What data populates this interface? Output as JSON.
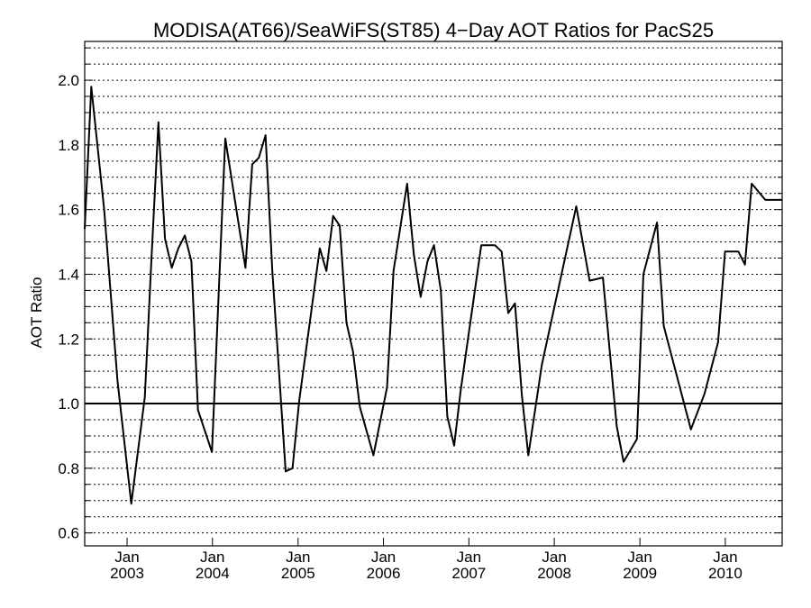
{
  "chart_data": {
    "type": "line",
    "title": "MODISA(AT66)/SeaWiFS(ST85) 4−Day AOT Ratios for PacS25",
    "xlabel": "",
    "ylabel": "AOT Ratio",
    "ylim": [
      0.56,
      2.12
    ],
    "xlim": [
      "2002-07-04",
      "2010-09-01"
    ],
    "y_ticks": [
      "0.6",
      "0.8",
      "1.0",
      "1.2",
      "1.4",
      "1.6",
      "1.8",
      "2.0"
    ],
    "x_ticks": [
      {
        "month": "Jan",
        "year": "2003"
      },
      {
        "month": "Jan",
        "year": "2004"
      },
      {
        "month": "Jan",
        "year": "2005"
      },
      {
        "month": "Jan",
        "year": "2006"
      },
      {
        "month": "Jan",
        "year": "2007"
      },
      {
        "month": "Jan",
        "year": "2008"
      },
      {
        "month": "Jan",
        "year": "2009"
      },
      {
        "month": "Jan",
        "year": "2010"
      }
    ],
    "reference_line": 1.0,
    "grid": "horizontal dotted every 0.05",
    "colors": {
      "line": "#000000",
      "background": "#ffffff"
    },
    "series": [
      {
        "x": [
          "2002-07-04",
          "2002-08-01",
          "2002-09-25",
          "2002-11-21",
          "2003-01-19",
          "2003-03-18",
          "2003-04-16",
          "2003-05-15",
          "2003-06-12",
          "2003-07-11",
          "2003-08-08",
          "2003-09-05",
          "2003-10-03",
          "2003-10-31",
          "2003-12-30",
          "2004-02-25",
          "2004-04-23",
          "2004-05-21",
          "2004-06-19",
          "2004-07-17",
          "2004-08-15",
          "2004-09-13",
          "2004-11-09",
          "2004-12-08",
          "2005-01-06",
          "2005-04-04",
          "2005-05-02",
          "2005-05-31",
          "2005-06-28",
          "2005-07-27",
          "2005-08-24",
          "2005-09-22",
          "2005-11-19",
          "2006-01-16",
          "2006-02-13",
          "2006-04-12",
          "2006-05-11",
          "2006-06-09",
          "2006-07-08",
          "2006-08-05",
          "2006-09-03",
          "2006-10-01",
          "2006-10-30",
          "2006-11-27",
          "2007-02-23",
          "2007-04-22",
          "2007-05-21",
          "2007-06-18",
          "2007-07-17",
          "2007-08-15",
          "2007-09-12",
          "2007-11-09",
          "2008-04-04",
          "2008-05-31",
          "2008-07-27",
          "2008-09-24",
          "2008-10-23",
          "2008-12-19",
          "2009-01-16",
          "2009-03-15",
          "2009-04-13",
          "2009-08-07",
          "2009-10-04",
          "2009-12-01",
          "2009-12-31",
          "2010-02-26",
          "2010-03-26",
          "2010-04-24",
          "2010-06-21",
          "2010-07-20",
          "2010-08-18",
          "2010-09-01"
        ],
        "values": [
          1.54,
          1.98,
          1.6,
          1.07,
          0.69,
          1.02,
          1.46,
          1.87,
          1.51,
          1.42,
          1.48,
          1.52,
          1.44,
          0.98,
          0.85,
          1.82,
          1.55,
          1.42,
          1.74,
          1.76,
          1.83,
          1.41,
          0.79,
          0.8,
          1.01,
          1.48,
          1.41,
          1.58,
          1.55,
          1.25,
          1.16,
          0.99,
          0.84,
          1.05,
          1.41,
          1.68,
          1.46,
          1.33,
          1.44,
          1.49,
          1.35,
          0.96,
          0.87,
          1.04,
          1.49,
          1.49,
          1.47,
          1.28,
          1.31,
          1.03,
          0.84,
          1.12,
          1.61,
          1.38,
          1.39,
          0.93,
          0.82,
          0.89,
          1.4,
          1.56,
          1.24,
          0.92,
          1.03,
          1.19,
          1.47,
          1.47,
          1.43,
          1.68,
          1.63,
          1.63,
          1.63,
          1.63
        ]
      }
    ]
  }
}
